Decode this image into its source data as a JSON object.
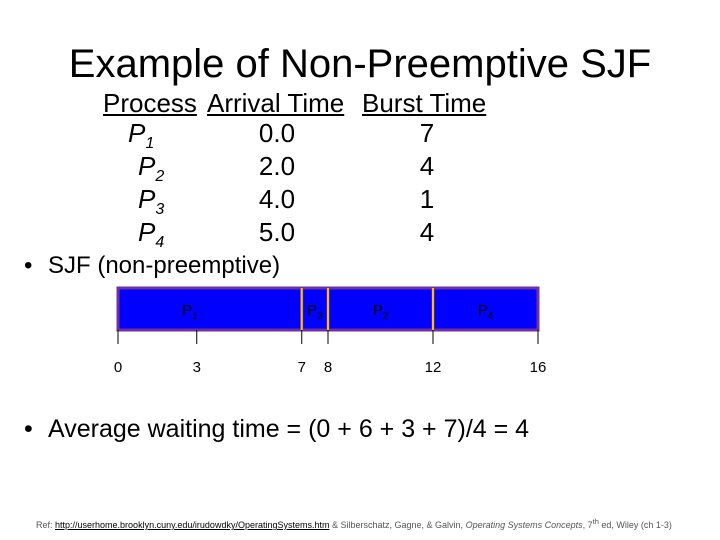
{
  "title": "Example of Non-Preemptive SJF",
  "table": {
    "headers": [
      "Process",
      "Arrival Time",
      "Burst Time"
    ],
    "rows": [
      {
        "letter": "P",
        "index": "1",
        "arrival": "0.0",
        "burst": "7"
      },
      {
        "letter": "P",
        "index": "2",
        "arrival": "2.0",
        "burst": "4"
      },
      {
        "letter": "P",
        "index": "3",
        "arrival": "4.0",
        "burst": "1"
      },
      {
        "letter": "P",
        "index": "4",
        "arrival": "5.0",
        "burst": "4"
      }
    ]
  },
  "bullet1": "SJF (non-preemptive)",
  "gantt": {
    "blocks": [
      {
        "letter": "P",
        "index": "1",
        "start": 0,
        "end": 7
      },
      {
        "letter": "P",
        "index": "3",
        "start": 7,
        "end": 8
      },
      {
        "letter": "P",
        "index": "2",
        "start": 8,
        "end": 12
      },
      {
        "letter": "P",
        "index": "4",
        "start": 12,
        "end": 16
      }
    ],
    "ticks": [
      0,
      3,
      7,
      8,
      12,
      16
    ]
  },
  "bullet2": "Average waiting time = (0 + 6 + 3 + 7)/4 = 4",
  "reference": {
    "prefix": "Ref: ",
    "link": "http://userhome.brooklyn.cuny.edu/irudowdky/OperatingSystems.htm",
    "authors": " & Silberschatz, Gagne, & Galvin, ",
    "book": "Operating Systems Concepts",
    "edition": ", 7",
    "sup": "th",
    "suffix": " ed, Wiley (ch 1-3)"
  }
}
